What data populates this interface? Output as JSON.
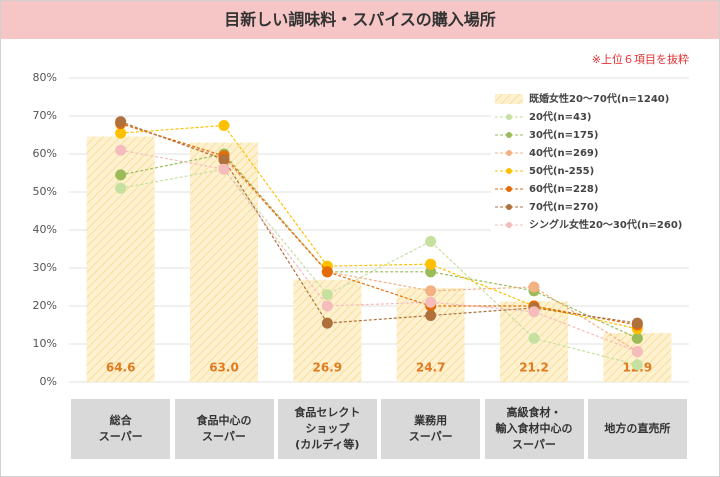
{
  "chart_data": {
    "type": "bar",
    "title": "目新しい調味料・スパイスの購入場所",
    "note": "※上位６項目を抜粋",
    "categories": [
      "総合\nスーパー",
      "食品中心の\nスーパー",
      "食品セレクト\nショップ\n(カルディ等)",
      "業務用\nスーパー",
      "高級食材・\n輸入食材中心の\nスーパー",
      "地方の直売所"
    ],
    "ylim": [
      0,
      80
    ],
    "yticks": [
      {
        "value": 0,
        "label": "0%"
      },
      {
        "value": 10,
        "label": "10%"
      },
      {
        "value": 20,
        "label": "20%"
      },
      {
        "value": 30,
        "label": "30%"
      },
      {
        "value": 40,
        "label": "40%"
      },
      {
        "value": 50,
        "label": "50%"
      },
      {
        "value": 60,
        "label": "60%"
      },
      {
        "value": 70,
        "label": "70%"
      },
      {
        "value": 80,
        "label": "80%"
      }
    ],
    "grid": true,
    "legend": "upper right",
    "series": [
      {
        "name": "既婚女性20～70代(n=1240)",
        "type": "bar",
        "color": "#fbe3a6",
        "values": [
          64.6,
          63.0,
          26.9,
          24.7,
          21.2,
          12.9
        ],
        "value_labels": [
          "64.6",
          "63.0",
          "26.9",
          "24.7",
          "21.2",
          "12.9"
        ]
      },
      {
        "name": "20代(n=43)",
        "type": "line",
        "color": "#c6e0a0",
        "values": [
          51,
          56,
          23,
          37,
          11.5,
          4.5
        ]
      },
      {
        "name": "30代(n=175)",
        "type": "line",
        "color": "#9bbb59",
        "values": [
          54.5,
          60,
          29,
          29,
          24,
          11.5
        ]
      },
      {
        "name": "40代(n=269)",
        "type": "line",
        "color": "#f4b183",
        "values": [
          68,
          59,
          29,
          24,
          25,
          8
        ]
      },
      {
        "name": "50代(n-255)",
        "type": "line",
        "color": "#ffc000",
        "values": [
          65.5,
          67.5,
          30.5,
          31,
          20,
          14
        ]
      },
      {
        "name": "60代(n=228)",
        "type": "line",
        "color": "#e46c0a",
        "values": [
          68,
          59.5,
          29,
          20,
          20,
          15
        ]
      },
      {
        "name": "70代(n=270)",
        "type": "line",
        "color": "#b0703c",
        "values": [
          68.5,
          58.5,
          15.5,
          17.5,
          19.5,
          15.5
        ]
      },
      {
        "name": "シングル女性20～30代(n=260)",
        "type": "line",
        "color": "#f6bcbc",
        "values": [
          61,
          56,
          20,
          21,
          18.5,
          8
        ]
      }
    ]
  }
}
